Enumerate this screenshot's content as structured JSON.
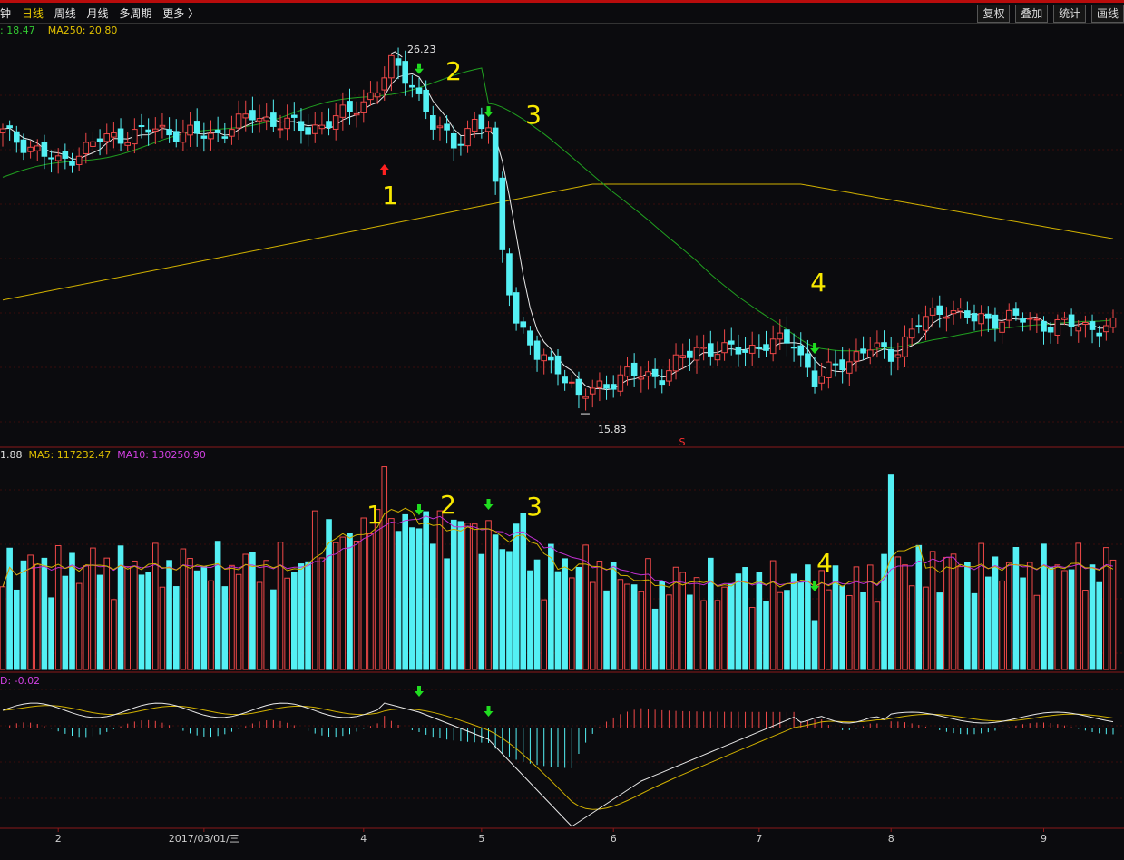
{
  "toolbar": {
    "tabs": [
      "钟",
      "日线",
      "周线",
      "月线",
      "多周期",
      "更多 〉"
    ],
    "active_tab": "日线",
    "buttons": [
      "复权",
      "叠加",
      "统计",
      "画线"
    ]
  },
  "legends": {
    "price": [
      {
        "text": ": 18.47",
        "color": "#33cc33"
      },
      {
        "text": "MA250: 20.80",
        "color": "#e0c000"
      }
    ],
    "volume": [
      {
        "text": "1.88",
        "color": "#e0e0e0"
      },
      {
        "text": "MA5: 117232.47",
        "color": "#e0c000"
      },
      {
        "text": "MA10: 130250.90",
        "color": "#d040e0"
      }
    ],
    "macd": [
      {
        "text": "D: -0.02",
        "color": "#d040e0"
      }
    ]
  },
  "annotations": {
    "price_labels": [
      "1",
      "2",
      "3",
      "4"
    ],
    "volume_labels": [
      "1",
      "2",
      "3",
      "4"
    ],
    "high_label": "26.23",
    "low_label": "15.83",
    "marker": "S"
  },
  "colors": {
    "up": "#f04848",
    "down": "#54f0f4",
    "ma_white": "#e8e8e8",
    "ma_green": "#20a020",
    "ma_yellow": "#d0b000",
    "ma_magenta": "#c030d0",
    "annotation": "#f8e800",
    "arrow_green": "#20dd20",
    "arrow_red": "#ff2020"
  },
  "chart_data": {
    "type": "line",
    "x_ticks": [
      {
        "label": "2",
        "i": 8
      },
      {
        "label": "2017/03/01/三",
        "i": 29
      },
      {
        "label": "4",
        "i": 52
      },
      {
        "label": "5",
        "i": 69
      },
      {
        "label": "6",
        "i": 88
      },
      {
        "label": "7",
        "i": 109
      },
      {
        "label": "8",
        "i": 128
      },
      {
        "label": "9",
        "i": 150
      }
    ],
    "price": {
      "high_point": {
        "index": 56,
        "value": 26.23
      },
      "low_point": {
        "index": 83,
        "value": 15.83
      },
      "ma250_start": 19.0,
      "ma250_end": 20.8
    },
    "signals_down_idx": [
      60,
      70,
      117
    ],
    "signal_up_idx": 55
  }
}
